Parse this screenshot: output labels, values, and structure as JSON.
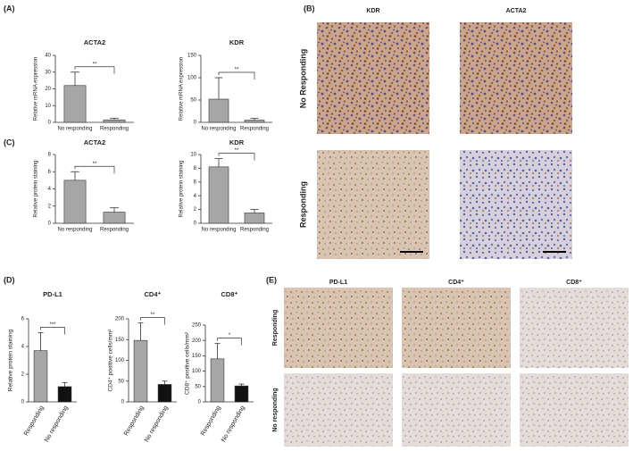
{
  "panel_labels": [
    "(A)",
    "(B)",
    "(C)",
    "(D)",
    "(E)"
  ],
  "chart_data": [
    {
      "type": "bar",
      "title": "ACTA2",
      "y_label": "Relative mRNA expression",
      "categories": [
        "No responding",
        "Responding"
      ],
      "values": [
        22,
        1.5
      ],
      "errors": [
        8,
        1
      ],
      "colors": [
        "#a6a6a6",
        "#a6a6a6"
      ],
      "ylim": [
        0,
        40
      ],
      "yticks": [
        0,
        10,
        20,
        30,
        40
      ],
      "significance": "**"
    },
    {
      "type": "bar",
      "title": "KDR",
      "y_label": "Relative mRNA expression",
      "categories": [
        "No responding",
        "Responding"
      ],
      "values": [
        52,
        5
      ],
      "errors": [
        48,
        4
      ],
      "colors": [
        "#a6a6a6",
        "#a6a6a6"
      ],
      "ylim": [
        0,
        150
      ],
      "yticks": [
        0,
        50,
        100,
        150
      ],
      "significance": "**"
    },
    {
      "type": "bar",
      "title": "ACTA2",
      "y_label": "Relative protein staining",
      "categories": [
        "No responding",
        "Responding"
      ],
      "values": [
        5,
        1.3
      ],
      "errors": [
        1,
        0.5
      ],
      "colors": [
        "#a6a6a6",
        "#a6a6a6"
      ],
      "ylim": [
        0,
        8
      ],
      "yticks": [
        0,
        2,
        4,
        6,
        8
      ],
      "significance": "**"
    },
    {
      "type": "bar",
      "title": "KDR",
      "y_label": "Relative protein staining",
      "categories": [
        "No responding",
        "Responding"
      ],
      "values": [
        8.2,
        1.5
      ],
      "errors": [
        1.2,
        0.5
      ],
      "colors": [
        "#a6a6a6",
        "#a6a6a6"
      ],
      "ylim": [
        0,
        10
      ],
      "yticks": [
        0,
        2,
        4,
        6,
        8,
        10
      ],
      "significance": "**"
    },
    {
      "type": "bar",
      "title": "PD-L1",
      "y_label": "Relative protein staining",
      "categories": [
        "Responding",
        "No responding"
      ],
      "values": [
        3.7,
        1.1
      ],
      "errors": [
        1.3,
        0.3
      ],
      "colors": [
        "#a6a6a6",
        "#111111"
      ],
      "ylim": [
        0,
        6
      ],
      "yticks": [
        0,
        2,
        4,
        6
      ],
      "significance": "***"
    },
    {
      "type": "bar",
      "title": "CD4⁺",
      "y_label": "CD4⁺ positive cells/mm²",
      "categories": [
        "Responding",
        "No responding"
      ],
      "values": [
        148,
        42
      ],
      "errors": [
        42,
        8
      ],
      "colors": [
        "#a6a6a6",
        "#111111"
      ],
      "ylim": [
        0,
        200
      ],
      "yticks": [
        0,
        50,
        100,
        150,
        200
      ],
      "significance": "**"
    },
    {
      "type": "bar",
      "title": "CD8⁺",
      "y_label": "CD8⁺ positive cells/mm²",
      "categories": [
        "Responding",
        "No responding"
      ],
      "values": [
        140,
        52
      ],
      "errors": [
        50,
        6
      ],
      "colors": [
        "#a6a6a6",
        "#111111"
      ],
      "ylim": [
        0,
        250
      ],
      "yticks": [
        0,
        50,
        100,
        150,
        200,
        250
      ],
      "significance": "*"
    }
  ],
  "histology_b": {
    "columns": [
      "KDR",
      "ACTA2"
    ],
    "rows": [
      "No Responding",
      "Responding"
    ]
  },
  "histology_e": {
    "columns": [
      "PD-L1",
      "CD4⁺",
      "CD8⁺"
    ],
    "rows": [
      "Responding",
      "No responding"
    ]
  }
}
